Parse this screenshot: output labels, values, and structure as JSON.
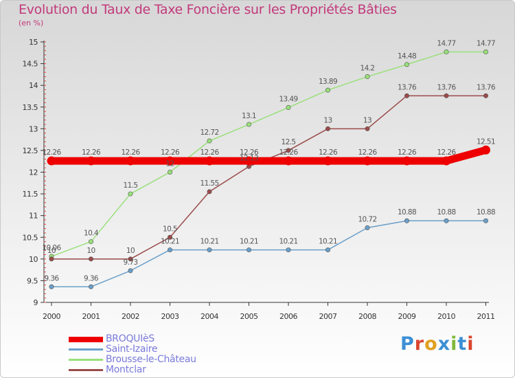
{
  "title": "Evolution du Taux de Taxe Foncière sur les Propriétés Bâties",
  "subtitle": "(en %)",
  "logo_text": "Proxiti",
  "logo_colors": [
    "#3c8fd4",
    "#d9452f",
    "#e0a020",
    "#3c8fd4",
    "#7fb93a",
    "#3c8fd4",
    "#d9452f"
  ],
  "chart_data": {
    "type": "line",
    "title": "Evolution du Taux de Taxe Foncière sur les Propriétés Bâties",
    "ylabel": "(en %)",
    "xlabel": "",
    "x": [
      "2000",
      "2001",
      "2002",
      "2003",
      "2004",
      "2005",
      "2006",
      "2007",
      "2008",
      "2009",
      "2010",
      "2011"
    ],
    "ylim": [
      9,
      15
    ],
    "yticks": [
      "9",
      "9.5",
      "10",
      "10.5",
      "11",
      "11.5",
      "12",
      "12.5",
      "13",
      "13.5",
      "14",
      "14.5",
      "15"
    ],
    "legend_position": "bottom-left",
    "series": [
      {
        "name": "BROQUIèS",
        "color": "#ee0000",
        "values": [
          12.26,
          12.26,
          12.26,
          12.26,
          12.26,
          12.26,
          12.26,
          12.26,
          12.26,
          12.26,
          12.26,
          12.51
        ],
        "labels": [
          "12.26",
          "12.26",
          "12.26",
          "12.26",
          "12.26",
          "12.26",
          "12.26",
          "12.26",
          "12.26",
          "12.26",
          "12.26",
          "12.51"
        ]
      },
      {
        "name": "Saint-Izaire",
        "color": "#6a9fc9",
        "values": [
          9.36,
          9.36,
          9.73,
          10.21,
          10.21,
          10.21,
          10.21,
          10.21,
          10.72,
          10.88,
          10.88,
          10.88
        ],
        "labels": [
          "9.36",
          "9.36",
          "9.73",
          "10.21",
          "10.21",
          "10.21",
          "10.21",
          "10.21",
          "10.72",
          "10.88",
          "10.88",
          "10.88"
        ]
      },
      {
        "name": "Brousse-le-Château",
        "color": "#99e07a",
        "values": [
          10.06,
          10.4,
          11.5,
          12,
          12.72,
          13.1,
          13.49,
          13.89,
          14.2,
          14.48,
          14.77,
          14.77
        ],
        "labels": [
          "10.06",
          "10.4",
          "11.5",
          "12",
          "12.72",
          "13.1",
          "13.49",
          "13.89",
          "14.2",
          "14.48",
          "14.77",
          "14.77"
        ]
      },
      {
        "name": "Montclar",
        "color": "#9a4a4a",
        "values": [
          10,
          10,
          10,
          10.5,
          11.55,
          12.13,
          12.5,
          13,
          13,
          13.76,
          13.76,
          13.76
        ],
        "labels": [
          "10",
          "10",
          "10",
          "10.5",
          "11.55",
          "12.13",
          "12.5",
          "13",
          "13",
          "13.76",
          "13.76",
          "13.76"
        ]
      }
    ]
  }
}
